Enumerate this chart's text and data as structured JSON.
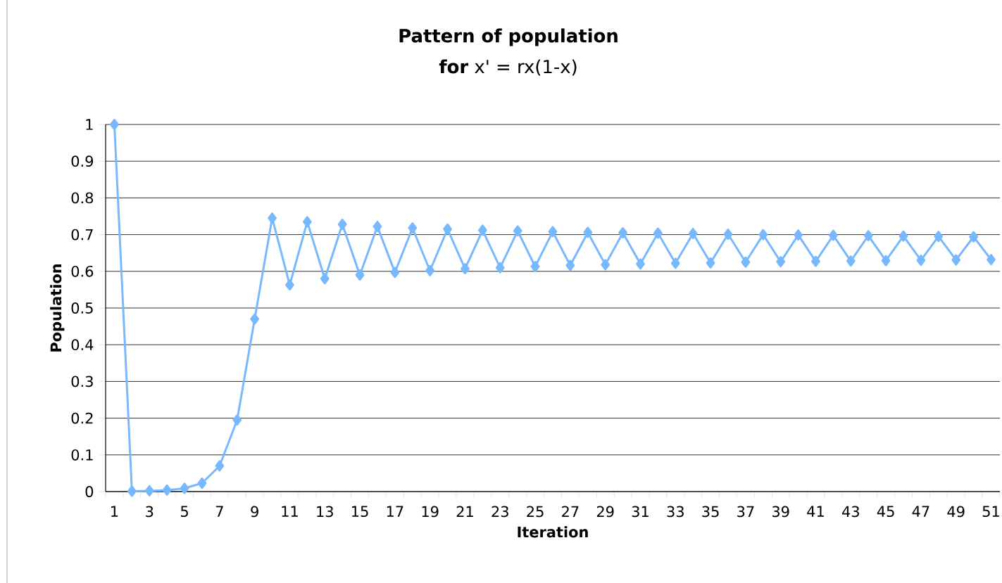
{
  "chart_data": {
    "type": "line",
    "title": "Pattern of population",
    "subtitle": "**for** x' = rx(1-x)",
    "xlabel": "Iteration",
    "ylabel": "Population",
    "categories": [
      "1",
      null,
      "3",
      null,
      "5",
      null,
      "7",
      null,
      "9",
      null,
      "11",
      null,
      "13",
      null,
      "15",
      null,
      "17",
      null,
      "19",
      null,
      "21",
      null,
      "23",
      null,
      "25",
      null,
      "27",
      null,
      "29",
      null,
      "31",
      null,
      "33",
      null,
      "35",
      null,
      "37",
      null,
      "39",
      null,
      "41",
      null,
      "43",
      null,
      "45",
      null,
      "47",
      null,
      "49",
      null,
      "51"
    ],
    "series": [
      {
        "color": "#77b8ff",
        "values": [
          1.0,
          0.001,
          0.002,
          0.004,
          0.009,
          0.023,
          0.07,
          0.195,
          0.47,
          0.745,
          0.563,
          0.735,
          0.58,
          0.728,
          0.59,
          0.722,
          0.597,
          0.718,
          0.602,
          0.715,
          0.607,
          0.712,
          0.61,
          0.71,
          0.613,
          0.708,
          0.616,
          0.706,
          0.618,
          0.705,
          0.62,
          0.704,
          0.622,
          0.703,
          0.623,
          0.701,
          0.625,
          0.7,
          0.626,
          0.699,
          0.627,
          0.698,
          0.628,
          0.697,
          0.629,
          0.696,
          0.63,
          0.695,
          0.631,
          0.694,
          0.632
        ]
      }
    ],
    "ylim": [
      0,
      1
    ],
    "yticks": [
      0,
      0.1,
      0.2,
      0.3,
      0.4,
      0.5,
      0.6,
      0.7,
      0.8,
      0.9,
      1
    ],
    "grid": "y",
    "marker": "diamond",
    "line_style": "solid"
  }
}
